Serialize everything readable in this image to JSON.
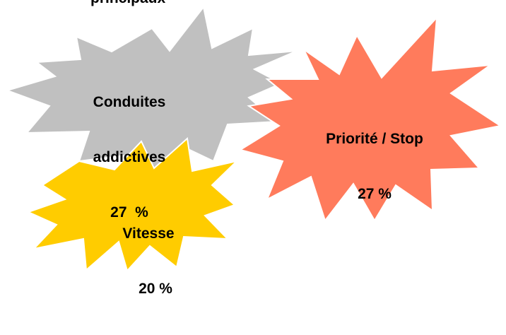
{
  "top_text": "principaux",
  "colors": {
    "gray_burst": "#c0c0c0",
    "red_burst": "#ff7b5c",
    "yellow_burst": "#ffcc00",
    "outline": "#ffffff"
  },
  "bursts": [
    {
      "id": "conduites",
      "lines": [
        "Conduites",
        "addictives",
        "27  %"
      ],
      "value_percent": 27
    },
    {
      "id": "priorite",
      "lines": [
        "Priorité / Stop",
        "27 %"
      ],
      "value_percent": 27
    },
    {
      "id": "vitesse",
      "lines": [
        "Vitesse",
        "20 %"
      ],
      "value_percent": 20
    }
  ]
}
